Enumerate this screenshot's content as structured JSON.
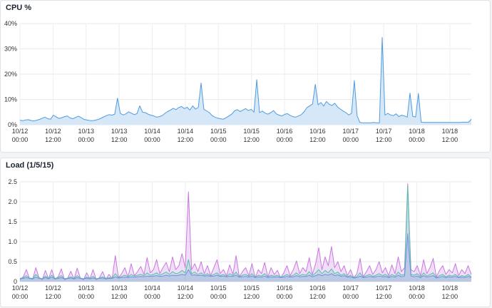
{
  "charts": {
    "cpu": {
      "title": "CPU %",
      "chart_data": {
        "type": "area",
        "title": "CPU %",
        "ylim": [
          0,
          40
        ],
        "yticks": [
          "0%",
          "10%",
          "20%",
          "30%",
          "40%"
        ],
        "ytick_values": [
          0,
          10,
          20,
          30,
          40
        ],
        "xticks": [
          {
            "date": "10/12",
            "time": "00:00"
          },
          {
            "date": "10/12",
            "time": "12:00"
          },
          {
            "date": "10/13",
            "time": "00:00"
          },
          {
            "date": "10/13",
            "time": "12:00"
          },
          {
            "date": "10/14",
            "time": "00:00"
          },
          {
            "date": "10/14",
            "time": "12:00"
          },
          {
            "date": "10/15",
            "time": "00:00"
          },
          {
            "date": "10/15",
            "time": "12:00"
          },
          {
            "date": "10/16",
            "time": "00:00"
          },
          {
            "date": "10/16",
            "time": "12:00"
          },
          {
            "date": "10/17",
            "time": "00:00"
          },
          {
            "date": "10/17",
            "time": "12:00"
          },
          {
            "date": "10/18",
            "time": "00:00"
          },
          {
            "date": "10/18",
            "time": "12:00"
          }
        ],
        "grid": true,
        "series": [
          {
            "color": "#4f9be0",
            "fill": "#d6e8f8",
            "values": [
              1.8,
              1.6,
              1.9,
              2.0,
              1.7,
              1.5,
              1.8,
              2.1,
              2.6,
              3.0,
              2.4,
              2.2,
              3.8,
              3.1,
              2.5,
              2.8,
              3.2,
              3.5,
              2.7,
              2.4,
              2.9,
              3.4,
              2.8,
              2.1,
              1.9,
              1.7,
              1.6,
              1.8,
              2.1,
              2.5,
              3.1,
              3.6,
              4.0,
              3.8,
              4.2,
              10.5,
              4.5,
              3.9,
              4.3,
              5.1,
              4.6,
              4.0,
              4.4,
              7.5,
              5.0,
              4.8,
              4.2,
              3.8,
              3.5,
              3.0,
              3.2,
              3.6,
              4.5,
              5.2,
              5.8,
              6.5,
              6.0,
              6.8,
              7.2,
              6.4,
              6.9,
              5.8,
              7.5,
              6.2,
              6.9,
              16.5,
              6.1,
              5.5,
              4.8,
              3.6,
              3.0,
              2.6,
              2.4,
              2.2,
              2.8,
              3.5,
              4.2,
              5.5,
              6.0,
              5.2,
              5.8,
              6.4,
              5.6,
              6.1,
              5.0,
              17.8,
              4.8,
              5.4,
              4.6,
              4.2,
              4.8,
              5.6,
              4.3,
              3.8,
              3.5,
              4.1,
              4.4,
              3.7,
              3.2,
              3.0,
              3.5,
              4.0,
              5.2,
              6.8,
              7.5,
              8.2,
              16.0,
              7.9,
              8.8,
              7.4,
              9.2,
              8.1,
              7.6,
              8.5,
              7.0,
              6.2,
              5.4,
              4.8,
              3.9,
              4.5,
              17.5,
              3.6,
              0.9,
              0.8,
              0.8,
              0.8,
              0.8,
              0.9,
              0.8,
              0.8,
              34.5,
              3.8,
              4.5,
              3.9,
              3.6,
              4.3,
              3.2,
              3.8,
              3.5,
              3.0,
              12.5,
              3.3,
              3.1,
              12.4,
              1.0,
              0.9,
              0.9,
              0.9,
              0.9,
              0.9,
              0.9,
              0.9,
              0.9,
              0.9,
              0.9,
              0.9,
              0.9,
              0.9,
              0.9,
              1.0,
              1.0,
              1.0,
              2.2
            ]
          }
        ]
      }
    },
    "load": {
      "title": "Load (1/5/15)",
      "chart_data": {
        "type": "area",
        "title": "Load (1/5/15)",
        "ylim": [
          0,
          2.5
        ],
        "yticks": [
          "0",
          "0.5",
          "1.0",
          "1.5",
          "2.0",
          "2.5"
        ],
        "ytick_values": [
          0,
          0.5,
          1.0,
          1.5,
          2.0,
          2.5
        ],
        "xticks": [
          {
            "date": "10/12",
            "time": "00:00"
          },
          {
            "date": "10/12",
            "time": "12:00"
          },
          {
            "date": "10/13",
            "time": "00:00"
          },
          {
            "date": "10/13",
            "time": "12:00"
          },
          {
            "date": "10/14",
            "time": "00:00"
          },
          {
            "date": "10/14",
            "time": "12:00"
          },
          {
            "date": "10/15",
            "time": "00:00"
          },
          {
            "date": "10/15",
            "time": "12:00"
          },
          {
            "date": "10/16",
            "time": "00:00"
          },
          {
            "date": "10/16",
            "time": "12:00"
          },
          {
            "date": "10/17",
            "time": "00:00"
          },
          {
            "date": "10/17",
            "time": "12:00"
          },
          {
            "date": "10/18",
            "time": "00:00"
          },
          {
            "date": "10/18",
            "time": "12:00"
          }
        ],
        "grid": true,
        "series": [
          {
            "color": "#c879e0",
            "fill": "rgba(200,121,224,0.25)",
            "values": [
              0.05,
              0.12,
              0.3,
              0.08,
              0.06,
              0.35,
              0.1,
              0.05,
              0.28,
              0.07,
              0.3,
              0.06,
              0.12,
              0.32,
              0.05,
              0.08,
              0.26,
              0.06,
              0.34,
              0.09,
              0.05,
              0.22,
              0.07,
              0.3,
              0.05,
              0.1,
              0.25,
              0.06,
              0.18,
              0.08,
              0.65,
              0.1,
              0.2,
              0.35,
              0.12,
              0.45,
              0.15,
              0.25,
              0.38,
              0.18,
              0.6,
              0.22,
              0.3,
              0.55,
              0.2,
              0.35,
              0.48,
              0.25,
              0.62,
              0.3,
              0.4,
              0.7,
              0.35,
              2.25,
              0.3,
              0.45,
              0.25,
              0.5,
              0.2,
              0.4,
              0.15,
              0.35,
              0.55,
              0.2,
              0.3,
              0.15,
              0.42,
              0.18,
              0.65,
              0.12,
              0.25,
              0.35,
              0.15,
              0.45,
              0.1,
              0.3,
              0.2,
              0.48,
              0.12,
              0.35,
              0.18,
              0.28,
              0.1,
              0.22,
              0.4,
              0.15,
              0.3,
              0.52,
              0.2,
              0.35,
              0.25,
              0.6,
              0.18,
              0.45,
              0.85,
              0.3,
              0.62,
              0.4,
              0.88,
              0.35,
              0.5,
              0.25,
              0.4,
              0.15,
              0.3,
              0.1,
              0.2,
              0.58,
              0.12,
              0.25,
              0.4,
              0.18,
              0.3,
              0.5,
              0.22,
              0.35,
              0.15,
              0.42,
              0.2,
              0.62,
              0.25,
              0.35,
              2.45,
              0.3,
              0.25,
              0.4,
              0.15,
              0.55,
              0.2,
              0.35,
              0.58,
              0.12,
              0.28,
              0.4,
              0.18,
              0.3,
              0.22,
              0.45,
              0.15,
              0.3,
              0.2,
              0.4,
              0.18
            ]
          },
          {
            "color": "#4fc4a8",
            "fill": "rgba(79,196,168,0.20)",
            "values": [
              0.08,
              0.1,
              0.15,
              0.09,
              0.08,
              0.18,
              0.1,
              0.07,
              0.14,
              0.08,
              0.16,
              0.08,
              0.1,
              0.15,
              0.07,
              0.09,
              0.12,
              0.08,
              0.15,
              0.09,
              0.07,
              0.11,
              0.08,
              0.13,
              0.07,
              0.09,
              0.12,
              0.08,
              0.1,
              0.09,
              0.2,
              0.1,
              0.13,
              0.16,
              0.12,
              0.18,
              0.14,
              0.16,
              0.18,
              0.15,
              0.22,
              0.16,
              0.18,
              0.22,
              0.16,
              0.2,
              0.24,
              0.18,
              0.25,
              0.2,
              0.22,
              0.28,
              0.22,
              0.55,
              0.2,
              0.24,
              0.18,
              0.22,
              0.16,
              0.2,
              0.14,
              0.18,
              0.22,
              0.15,
              0.18,
              0.13,
              0.2,
              0.15,
              0.24,
              0.12,
              0.16,
              0.18,
              0.13,
              0.2,
              0.11,
              0.16,
              0.14,
              0.2,
              0.12,
              0.16,
              0.14,
              0.16,
              0.11,
              0.14,
              0.18,
              0.13,
              0.16,
              0.22,
              0.15,
              0.18,
              0.16,
              0.25,
              0.15,
              0.22,
              0.3,
              0.2,
              0.28,
              0.22,
              0.32,
              0.2,
              0.24,
              0.16,
              0.2,
              0.12,
              0.16,
              0.1,
              0.13,
              0.22,
              0.11,
              0.15,
              0.18,
              0.13,
              0.16,
              0.2,
              0.15,
              0.18,
              0.12,
              0.18,
              0.14,
              0.24,
              0.16,
              0.18,
              2.4,
              0.18,
              0.16,
              0.2,
              0.12,
              0.22,
              0.14,
              0.18,
              0.22,
              0.1,
              0.15,
              0.18,
              0.12,
              0.16,
              0.14,
              0.18,
              0.11,
              0.15,
              0.13,
              0.18,
              0.12
            ]
          },
          {
            "color": "#6f8fe0",
            "fill": "rgba(111,143,224,0.20)",
            "values": [
              0.07,
              0.08,
              0.1,
              0.08,
              0.07,
              0.11,
              0.08,
              0.07,
              0.1,
              0.07,
              0.11,
              0.07,
              0.08,
              0.1,
              0.07,
              0.08,
              0.09,
              0.07,
              0.1,
              0.08,
              0.07,
              0.09,
              0.07,
              0.09,
              0.07,
              0.08,
              0.09,
              0.07,
              0.08,
              0.08,
              0.12,
              0.09,
              0.1,
              0.11,
              0.1,
              0.12,
              0.11,
              0.12,
              0.13,
              0.12,
              0.14,
              0.13,
              0.14,
              0.15,
              0.13,
              0.14,
              0.16,
              0.14,
              0.16,
              0.15,
              0.16,
              0.18,
              0.16,
              0.3,
              0.16,
              0.17,
              0.15,
              0.16,
              0.14,
              0.15,
              0.13,
              0.14,
              0.16,
              0.13,
              0.14,
              0.12,
              0.14,
              0.13,
              0.16,
              0.11,
              0.12,
              0.13,
              0.11,
              0.14,
              0.1,
              0.12,
              0.11,
              0.14,
              0.1,
              0.12,
              0.11,
              0.12,
              0.1,
              0.11,
              0.13,
              0.11,
              0.12,
              0.15,
              0.12,
              0.13,
              0.13,
              0.16,
              0.12,
              0.15,
              0.18,
              0.15,
              0.18,
              0.16,
              0.2,
              0.15,
              0.17,
              0.13,
              0.15,
              0.11,
              0.12,
              0.09,
              0.1,
              0.14,
              0.1,
              0.11,
              0.13,
              0.11,
              0.12,
              0.14,
              0.12,
              0.13,
              0.1,
              0.13,
              0.11,
              0.16,
              0.12,
              0.14,
              1.2,
              0.14,
              0.12,
              0.14,
              0.1,
              0.15,
              0.11,
              0.13,
              0.15,
              0.09,
              0.11,
              0.13,
              0.1,
              0.12,
              0.11,
              0.13,
              0.1,
              0.11,
              0.1,
              0.13,
              0.1
            ]
          }
        ]
      }
    }
  }
}
